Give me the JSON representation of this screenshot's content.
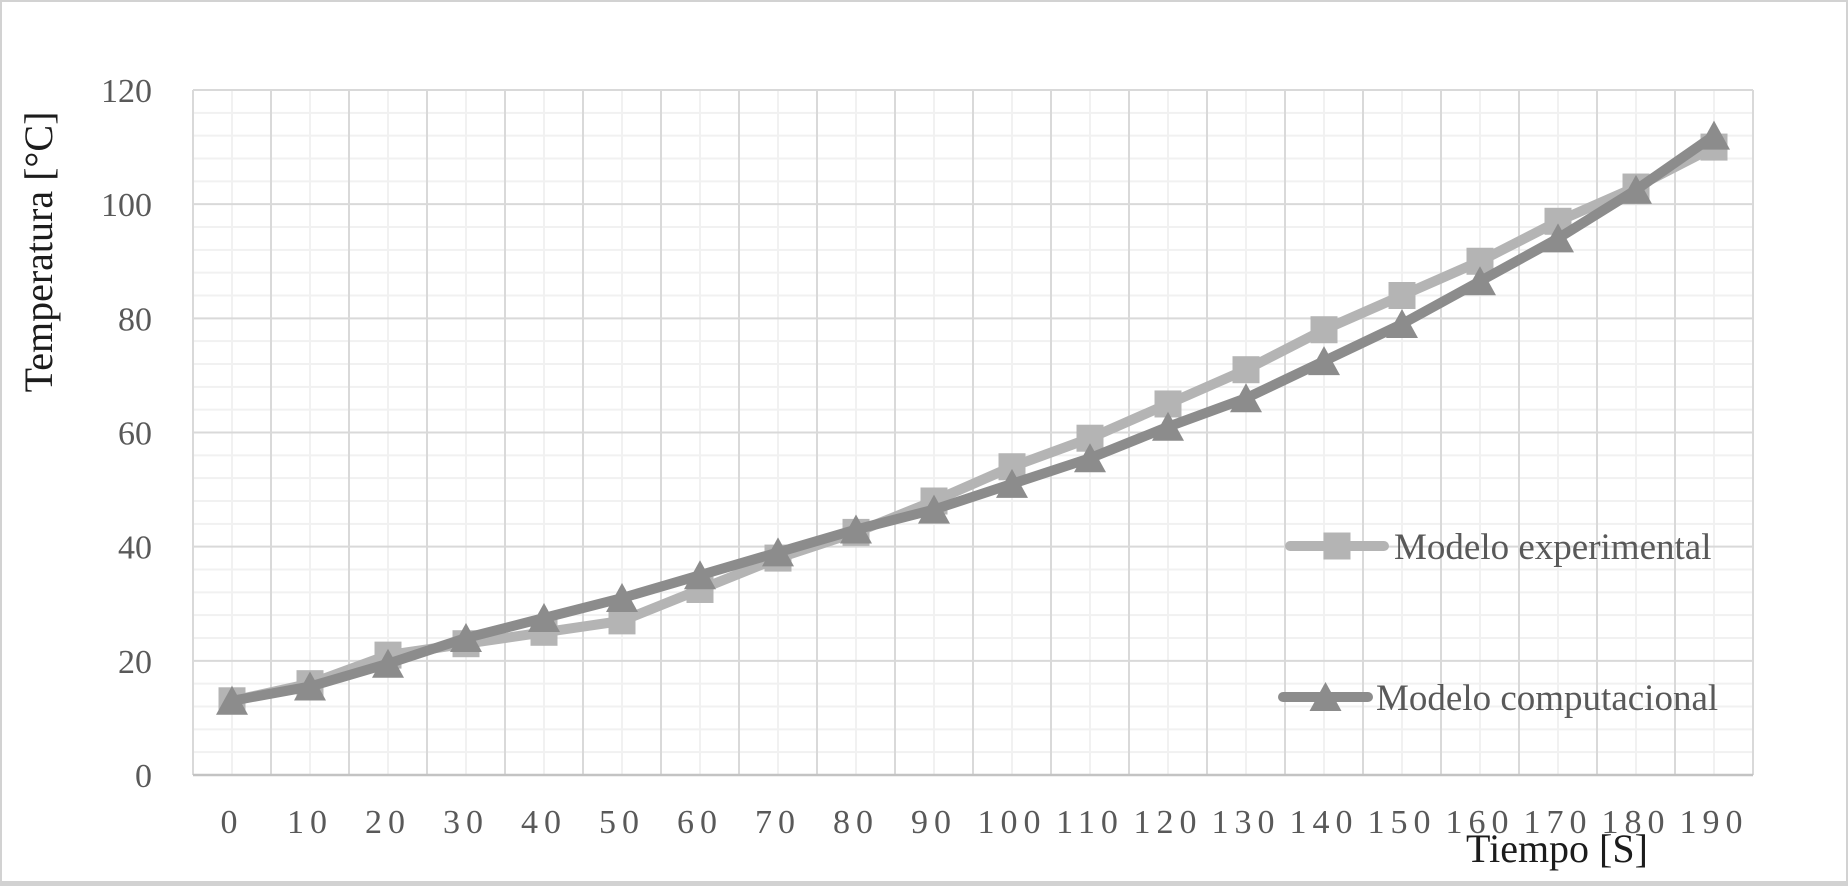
{
  "figure": {
    "border_color": "#d2d2d2",
    "background": "#ffffff"
  },
  "chart_data": {
    "type": "line",
    "title": "",
    "xlabel": "Tiempo [S]",
    "ylabel": "Temperatura [°C]",
    "categories": [
      "0",
      "10",
      "20",
      "30",
      "40",
      "50",
      "60",
      "70",
      "80",
      "90",
      "100",
      "110",
      "120",
      "130",
      "140",
      "150",
      "160",
      "170",
      "180",
      "190"
    ],
    "series": [
      {
        "name": "Modelo experimental",
        "marker": "square",
        "color": "#b4b4b4",
        "values": [
          13,
          16,
          21,
          23,
          25,
          27,
          32.5,
          38,
          42.5,
          48,
          54,
          59,
          65,
          71,
          78,
          84,
          90,
          97,
          103,
          110
        ]
      },
      {
        "name": "Modelo computacional",
        "marker": "triangle",
        "color": "#8c8c8c",
        "values": [
          13,
          15.5,
          19.5,
          24,
          27.5,
          31,
          35,
          39,
          43,
          46.5,
          51,
          55.5,
          61,
          66,
          72.5,
          79,
          86.5,
          94,
          102.5,
          112
        ]
      }
    ],
    "ylim": [
      0,
      120
    ],
    "y_major_step": 20,
    "y_minor_step": 4,
    "x_minor_per_band": true,
    "grid": true,
    "legend_position": "inside-right",
    "colors": {
      "tick_label": "#595959",
      "legend_text": "#595959",
      "axis_title": "#1c1c1c",
      "grid_major": "#d9d9d9",
      "grid_minor": "#f1f1f1",
      "axis_line": "#c3c3c3"
    }
  }
}
